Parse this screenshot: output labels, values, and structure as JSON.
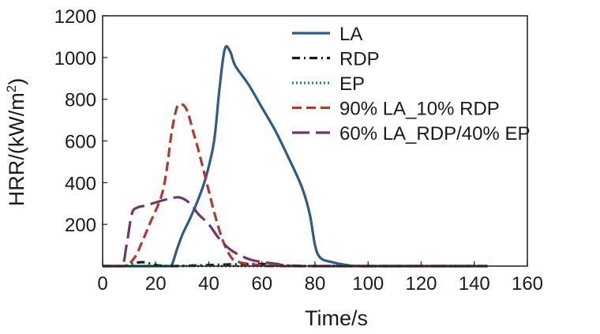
{
  "chart_data": {
    "type": "line",
    "title": "",
    "xlabel": "Time/s",
    "ylabel_main": "HRR/(kW/m",
    "ylabel_sup": "2",
    "ylabel_close": ")",
    "xlim": [
      0,
      160
    ],
    "ylim": [
      0,
      1200
    ],
    "xticks": [
      "0",
      "20",
      "40",
      "60",
      "80",
      "100",
      "120",
      "140",
      "160"
    ],
    "yticks": [
      "200",
      "400",
      "600",
      "800",
      "1000",
      "1200"
    ],
    "grid": false,
    "legend_position": "top-right",
    "series": [
      {
        "name": "LA",
        "color": "#2e5b88",
        "style": "solid",
        "points": [
          [
            0,
            0
          ],
          [
            24,
            0
          ],
          [
            26,
            5
          ],
          [
            28,
            80
          ],
          [
            30,
            150
          ],
          [
            33,
            230
          ],
          [
            36,
            320
          ],
          [
            39,
            430
          ],
          [
            42,
            600
          ],
          [
            44,
            850
          ],
          [
            46,
            1040
          ],
          [
            48,
            1030
          ],
          [
            50,
            960
          ],
          [
            55,
            870
          ],
          [
            60,
            760
          ],
          [
            65,
            650
          ],
          [
            70,
            520
          ],
          [
            75,
            380
          ],
          [
            78,
            250
          ],
          [
            80,
            100
          ],
          [
            82,
            40
          ],
          [
            86,
            20
          ],
          [
            92,
            5
          ],
          [
            100,
            0
          ],
          [
            145,
            0
          ]
        ]
      },
      {
        "name": "RDP",
        "color": "#1a1a1a",
        "style": "dashdot",
        "points": [
          [
            0,
            0
          ],
          [
            8,
            0
          ],
          [
            12,
            15
          ],
          [
            16,
            18
          ],
          [
            20,
            5
          ],
          [
            26,
            0
          ],
          [
            40,
            5
          ],
          [
            60,
            10
          ],
          [
            80,
            0
          ],
          [
            140,
            0
          ]
        ]
      },
      {
        "name": "EP",
        "color": "#2a8a5a",
        "style": "dotted",
        "points": [
          [
            0,
            0
          ],
          [
            50,
            0
          ],
          [
            100,
            0
          ],
          [
            145,
            0
          ]
        ]
      },
      {
        "name": "90% LA_10% RDP",
        "color": "#b03a2e",
        "style": "dashed",
        "points": [
          [
            0,
            0
          ],
          [
            8,
            0
          ],
          [
            12,
            40
          ],
          [
            15,
            120
          ],
          [
            18,
            210
          ],
          [
            22,
            330
          ],
          [
            24,
            450
          ],
          [
            26,
            640
          ],
          [
            28,
            760
          ],
          [
            30,
            775
          ],
          [
            32,
            740
          ],
          [
            34,
            650
          ],
          [
            36,
            560
          ],
          [
            38,
            460
          ],
          [
            40,
            360
          ],
          [
            42,
            260
          ],
          [
            44,
            170
          ],
          [
            46,
            100
          ],
          [
            48,
            50
          ],
          [
            50,
            25
          ],
          [
            55,
            10
          ],
          [
            60,
            5
          ],
          [
            70,
            0
          ],
          [
            145,
            0
          ]
        ]
      },
      {
        "name": "60% LA_RDP/40% EP",
        "color": "#6b3a6b",
        "style": "longdash",
        "points": [
          [
            0,
            0
          ],
          [
            7,
            0
          ],
          [
            9,
            100
          ],
          [
            11,
            250
          ],
          [
            13,
            280
          ],
          [
            16,
            290
          ],
          [
            20,
            305
          ],
          [
            24,
            320
          ],
          [
            28,
            330
          ],
          [
            30,
            325
          ],
          [
            32,
            310
          ],
          [
            34,
            285
          ],
          [
            36,
            250
          ],
          [
            40,
            200
          ],
          [
            44,
            130
          ],
          [
            48,
            80
          ],
          [
            52,
            50
          ],
          [
            56,
            30
          ],
          [
            60,
            20
          ],
          [
            66,
            10
          ],
          [
            75,
            0
          ],
          [
            145,
            0
          ]
        ]
      }
    ]
  },
  "colors": {
    "axis": "#1a1a1a",
    "background": "#ffffff"
  }
}
